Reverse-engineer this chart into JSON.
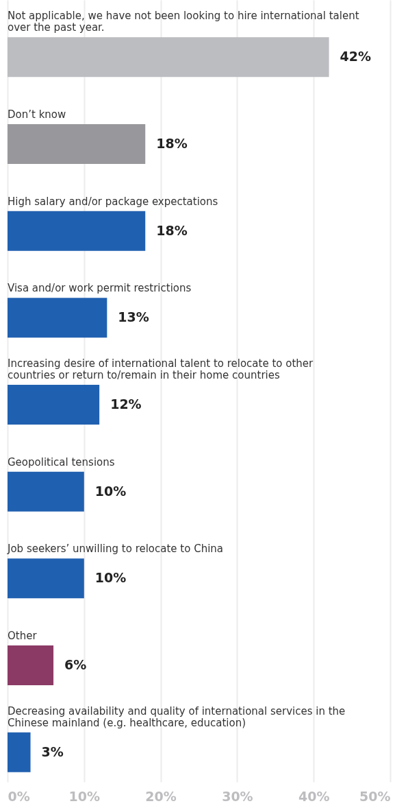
{
  "chart_data": {
    "type": "bar",
    "orientation": "horizontal",
    "categories": [
      "Not applicable, we have not been looking to hire international talent over the past year.",
      "Don’t know",
      "High salary and/or package expectations",
      "Visa and/or work permit restrictions",
      "Increasing desire of international talent to relocate to other countries or return to/remain in their home countries",
      "Geopolitical tensions",
      "Job seekers’ unwilling to relocate to China",
      "Other",
      "Decreasing availability and quality of international services in the Chinese mainland (e.g. healthcare, education)"
    ],
    "values": [
      42,
      18,
      18,
      13,
      12,
      10,
      10,
      6,
      3
    ],
    "colors": [
      "#bcbdc1",
      "#98989c",
      "#2060b0",
      "#2060b0",
      "#2060b0",
      "#2060b0",
      "#2060b0",
      "#8b3a65",
      "#2060b0"
    ],
    "value_labels": [
      "42%",
      "18%",
      "18%",
      "13%",
      "12%",
      "10%",
      "10%",
      "6%",
      "3%"
    ],
    "xlim": [
      0,
      50
    ],
    "xticks": [
      {
        "value": 0,
        "label": "0%"
      },
      {
        "value": 10,
        "label": "10%"
      },
      {
        "value": 20,
        "label": "20%"
      },
      {
        "value": 30,
        "label": "30%"
      },
      {
        "value": 40,
        "label": "40%"
      },
      {
        "value": 50,
        "label": "50%"
      }
    ],
    "grid": "x"
  }
}
